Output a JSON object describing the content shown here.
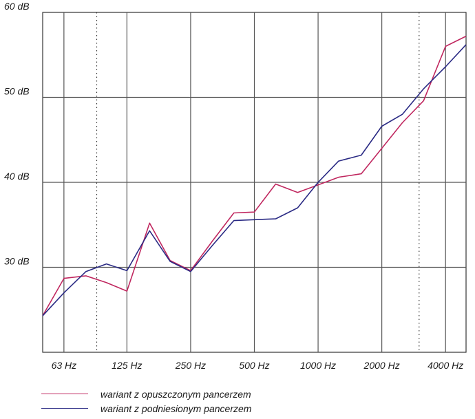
{
  "chart_data": {
    "type": "line",
    "title": "",
    "xlabel": "",
    "ylabel": "",
    "x_scale": "log2",
    "x_tick_labels": [
      "63 Hz",
      "125 Hz",
      "250 Hz",
      "500 Hz",
      "1000 Hz",
      "2000 Hz",
      "4000 Hz"
    ],
    "x_tick_values": [
      63,
      125,
      250,
      500,
      1000,
      2000,
      4000
    ],
    "xlim": [
      50,
      5000
    ],
    "y_tick_labels": [
      "30 dB",
      "40 dB",
      "50 dB",
      "60 dB"
    ],
    "y_tick_values": [
      30,
      40,
      50,
      60
    ],
    "ylim": [
      20,
      60
    ],
    "grid": true,
    "legend_position": "bottom",
    "series": [
      {
        "name": "wariant z opuszczonym pancerzem",
        "color": "#c0275f",
        "x": [
          50,
          63,
          80,
          100,
          125,
          160,
          200,
          250,
          315,
          400,
          500,
          630,
          800,
          1000,
          1250,
          1600,
          2000,
          2500,
          3150,
          4000,
          5000
        ],
        "y": [
          24.3,
          28.7,
          29.0,
          28.2,
          27.2,
          35.2,
          30.8,
          29.6,
          33.0,
          36.4,
          36.5,
          39.8,
          38.8,
          39.7,
          40.6,
          41.0,
          44.0,
          47.0,
          49.6,
          56.0,
          57.2
        ]
      },
      {
        "name": "wariant z podniesionym pancerzem",
        "color": "#2a2a84",
        "x": [
          50,
          63,
          80,
          100,
          125,
          160,
          200,
          250,
          315,
          400,
          500,
          630,
          800,
          1000,
          1250,
          1600,
          2000,
          2500,
          3150,
          4000,
          5000
        ],
        "y": [
          24.3,
          27.0,
          29.5,
          30.4,
          29.6,
          34.3,
          30.7,
          29.5,
          32.5,
          35.5,
          35.6,
          35.7,
          37.0,
          40.0,
          42.5,
          43.2,
          46.6,
          48.0,
          51.0,
          53.6,
          56.2
        ]
      }
    ]
  }
}
